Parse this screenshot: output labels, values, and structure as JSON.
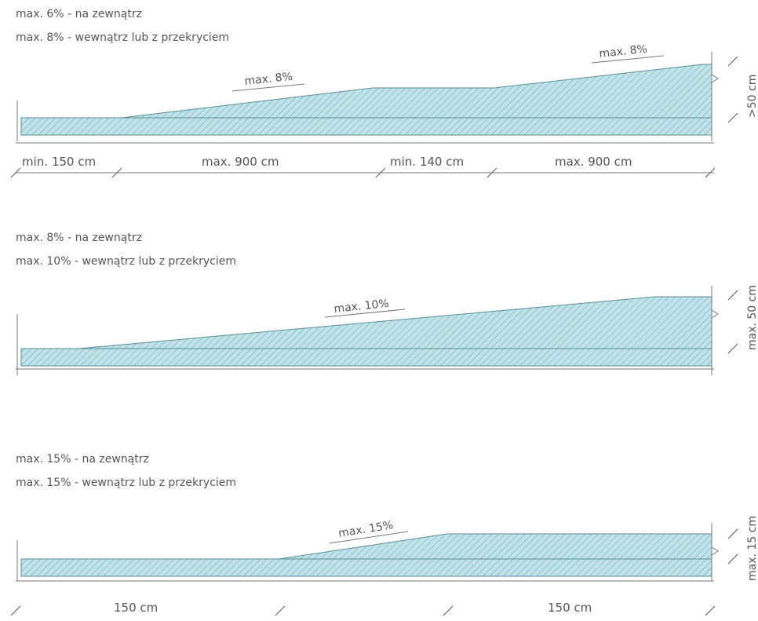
{
  "colors": {
    "fill": "#bfe3e8",
    "hatch": "#6aa7ae",
    "line": "#777777",
    "text": "#555555"
  },
  "ramp_1": {
    "caption_outside": "max. 6% - na zewnątrz",
    "caption_inside": "max. 8% - wewnątrz lub z przekryciem",
    "slope_label_1": "max. 8%",
    "slope_label_2": "max. 8%",
    "dim_1": "min. 150 cm",
    "dim_2": "max. 900 cm",
    "dim_3": "min. 140 cm",
    "dim_4": "max. 900 cm",
    "height": ">50 cm"
  },
  "ramp_2": {
    "caption_outside": "max. 8% - na zewnątrz",
    "caption_inside": "max. 10% - wewnątrz lub z przekryciem",
    "slope_label": "max. 10%",
    "height": "max. 50 cm"
  },
  "ramp_3": {
    "caption_outside": "max. 15% - na zewnątrz",
    "caption_inside": "max. 15% - wewnątrz lub z przekryciem",
    "slope_label": "max. 15%",
    "dim_1": "150 cm",
    "dim_2": "150 cm",
    "height": "max. 15 cm"
  }
}
